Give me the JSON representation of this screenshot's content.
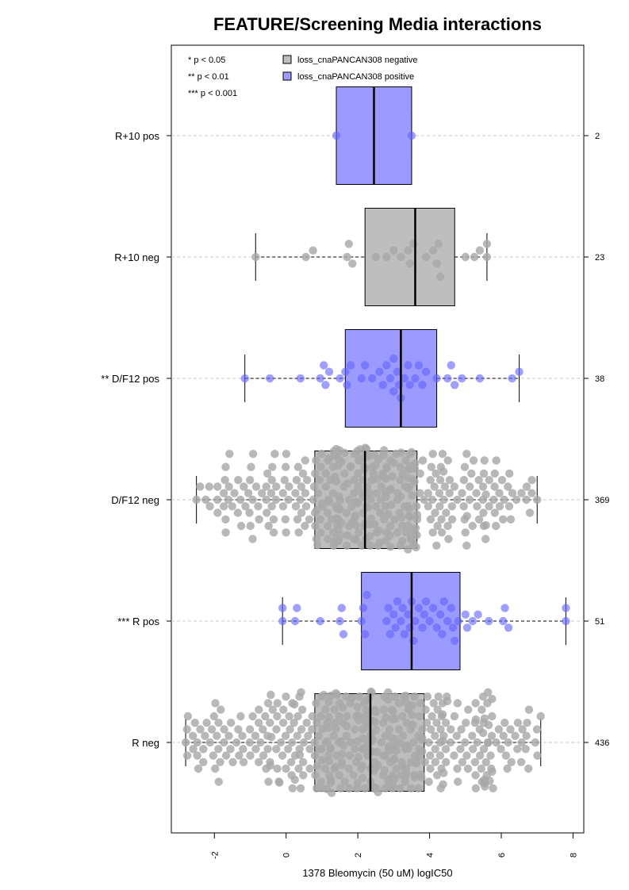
{
  "chart_data": {
    "type": "box-beeswarm",
    "title": "FEATURE/Screening Media interactions",
    "xlabel": "1378 Bleomycin (50 uM) logIC50",
    "ylabel": "",
    "xlim": [
      -3.2,
      8.3
    ],
    "xticks": [
      -2,
      0,
      2,
      4,
      6,
      8
    ],
    "xtick_labels": [
      "-2",
      "0",
      "2",
      "4",
      "6",
      "8"
    ],
    "grid": "dashed horizontal lines at each group",
    "significance_legend": [
      "* p < 0.05",
      "** p < 0.01",
      "*** p < 0.001"
    ],
    "legend": {
      "placement": "top",
      "entries": [
        {
          "label": "loss_cnaPANCAN308 negative",
          "color": "#bebebe"
        },
        {
          "label": "loss_cnaPANCAN308 positive",
          "color": "#9b9bff"
        }
      ]
    },
    "colors": {
      "negative_box": "#bebebe",
      "positive_box": "#9b9bff",
      "negative_point": "#a8a8a8",
      "positive_point": "#6464ff"
    },
    "groups": [
      {
        "label": "R+10 pos",
        "n": "2",
        "status": "positive",
        "box": {
          "whisker_low": 1.4,
          "q1": 1.4,
          "median": 2.45,
          "q3": 3.5,
          "whisker_high": 3.5
        }
      },
      {
        "label": "R+10 neg",
        "n": "23",
        "status": "negative",
        "box": {
          "whisker_low": -0.85,
          "q1": 2.2,
          "median": 3.6,
          "q3": 4.7,
          "whisker_high": 5.6
        }
      },
      {
        "label": "** D/F12 pos",
        "n": "38",
        "status": "positive",
        "box": {
          "whisker_low": -1.15,
          "q1": 1.65,
          "median": 3.2,
          "q3": 4.2,
          "whisker_high": 6.5
        }
      },
      {
        "label": "D/F12 neg",
        "n": "369",
        "status": "negative",
        "box": {
          "whisker_low": -2.5,
          "q1": 0.8,
          "median": 2.2,
          "q3": 3.65,
          "whisker_high": 7.0
        }
      },
      {
        "label": "*** R pos",
        "n": "51",
        "status": "positive",
        "box": {
          "whisker_low": -0.1,
          "q1": 2.1,
          "median": 3.5,
          "q3": 4.85,
          "whisker_high": 7.8
        }
      },
      {
        "label": "R neg",
        "n": "436",
        "status": "negative",
        "box": {
          "whisker_low": -2.8,
          "q1": 0.8,
          "median": 2.35,
          "q3": 3.85,
          "whisker_high": 7.1
        }
      }
    ],
    "points": {
      "R+10 pos": [
        1.4,
        3.5
      ],
      "R+10 neg": [
        -0.85,
        0.55,
        0.75,
        1.7,
        1.75,
        1.85,
        2.5,
        2.8,
        3.0,
        3.2,
        3.4,
        3.45,
        3.55,
        3.9,
        4.1,
        4.2,
        4.25,
        4.3,
        5.0,
        5.25,
        5.4,
        5.6,
        5.6
      ],
      "** D/F12 pos": [
        -1.15,
        -0.45,
        0.4,
        0.95,
        1.05,
        1.1,
        1.2,
        1.5,
        1.65,
        1.7,
        1.8,
        2.1,
        2.2,
        2.4,
        2.6,
        2.7,
        2.8,
        2.9,
        3.0,
        3.0,
        3.1,
        3.15,
        3.2,
        3.3,
        3.4,
        3.45,
        3.6,
        3.7,
        3.8,
        3.9,
        4.2,
        4.5,
        4.6,
        4.7,
        4.9,
        5.4,
        6.3,
        6.5
      ],
      "*** R pos": [
        -0.1,
        -0.1,
        0.25,
        0.3,
        0.95,
        1.5,
        1.55,
        1.6,
        2.1,
        2.15,
        2.2,
        2.25,
        2.8,
        2.85,
        2.9,
        3.0,
        3.05,
        3.1,
        3.2,
        3.25,
        3.3,
        3.4,
        3.45,
        3.5,
        3.55,
        3.6,
        3.7,
        3.8,
        3.85,
        3.9,
        4.0,
        4.1,
        4.2,
        4.3,
        4.35,
        4.4,
        4.5,
        4.6,
        4.65,
        4.7,
        4.8,
        5.0,
        5.05,
        5.2,
        5.35,
        5.65,
        6.05,
        6.1,
        6.2,
        7.8,
        7.8
      ]
    }
  }
}
